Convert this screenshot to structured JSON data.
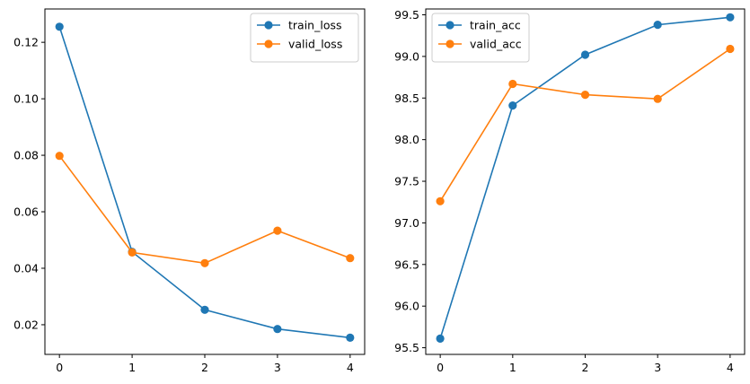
{
  "colors": {
    "series_1": "#1f77b4",
    "series_2": "#ff7f0e"
  },
  "chart_data": [
    {
      "type": "line",
      "title": "",
      "xlabel": "",
      "ylabel": "",
      "x": [
        0,
        1,
        2,
        3,
        4
      ],
      "xlim": [
        -0.2,
        4.2
      ],
      "ylim": [
        0.0095,
        0.1318
      ],
      "xticks": [
        0,
        1,
        2,
        3,
        4
      ],
      "xtick_labels": [
        "0",
        "1",
        "2",
        "3",
        "4"
      ],
      "yticks": [
        0.02,
        0.04,
        0.06,
        0.08,
        0.1,
        0.12
      ],
      "ytick_labels": [
        "0.02",
        "0.04",
        "0.06",
        "0.08",
        "0.10",
        "0.12"
      ],
      "grid": false,
      "legend": "top-right",
      "series": [
        {
          "name": "train_loss",
          "color": "#1f77b4",
          "marker": "circle",
          "values": [
            0.1255,
            0.0458,
            0.0253,
            0.0185,
            0.0154
          ]
        },
        {
          "name": "valid_loss",
          "color": "#ff7f0e",
          "marker": "circle",
          "values": [
            0.0798,
            0.0456,
            0.0418,
            0.0533,
            0.0436
          ]
        }
      ]
    },
    {
      "type": "line",
      "title": "",
      "xlabel": "",
      "ylabel": "",
      "x": [
        0,
        1,
        2,
        3,
        4
      ],
      "xlim": [
        -0.2,
        4.2
      ],
      "ylim": [
        95.42,
        99.57
      ],
      "xticks": [
        0,
        1,
        2,
        3,
        4
      ],
      "xtick_labels": [
        "0",
        "1",
        "2",
        "3",
        "4"
      ],
      "yticks": [
        95.5,
        96.0,
        96.5,
        97.0,
        97.5,
        98.0,
        98.5,
        99.0,
        99.5
      ],
      "ytick_labels": [
        "95.5",
        "96.0",
        "96.5",
        "97.0",
        "97.5",
        "98.0",
        "98.5",
        "99.0",
        "99.5"
      ],
      "grid": false,
      "legend": "top-left",
      "series": [
        {
          "name": "train_acc",
          "color": "#1f77b4",
          "marker": "circle",
          "values": [
            95.61,
            98.41,
            99.02,
            99.38,
            99.47
          ]
        },
        {
          "name": "valid_acc",
          "color": "#ff7f0e",
          "marker": "circle",
          "values": [
            97.26,
            98.67,
            98.54,
            98.49,
            99.09
          ]
        }
      ]
    }
  ]
}
